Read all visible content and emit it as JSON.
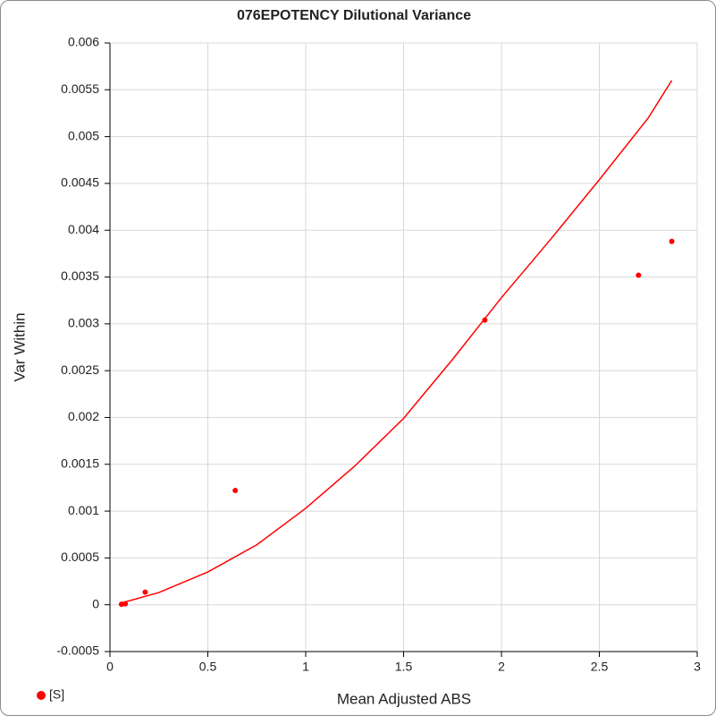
{
  "chart_data": {
    "type": "scatter",
    "title": "076EPOTENCY Dilutional Variance",
    "x_label": "Mean Adjusted ABS",
    "y_label": "Var Within",
    "xlim": [
      0,
      3
    ],
    "xticks": [
      0,
      0.5,
      1,
      1.5,
      2,
      2.5,
      3
    ],
    "ylim": [
      -0.0005,
      0.006
    ],
    "yticks": [
      -0.0005,
      0,
      0.0005,
      0.001,
      0.0015,
      0.002,
      0.0025,
      0.003,
      0.0035,
      0.004,
      0.0045,
      0.005,
      0.0055,
      0.006
    ],
    "grid": true,
    "legend": "bottom-left",
    "series": [
      {
        "name": "[S]",
        "color": "#ff0000",
        "mode": "markers",
        "x": [
          0.059,
          0.078,
          0.18,
          0.64,
          1.915,
          2.7,
          2.87
        ],
        "values": [
          5e-06,
          1e-05,
          0.000134,
          0.00122,
          0.00304,
          0.00352,
          0.00388
        ]
      },
      {
        "color": "#ff0000",
        "mode": "line",
        "x": [
          0.06,
          0.25,
          0.5,
          0.75,
          1,
          1.25,
          1.5,
          1.75,
          2,
          2.25,
          2.5,
          2.75,
          2.87
        ],
        "values": [
          2e-05,
          0.00013,
          0.00035,
          0.00064,
          0.00103,
          0.00148,
          0.00199,
          0.00262,
          0.00328,
          0.0039,
          0.00454,
          0.0052,
          0.0056
        ]
      }
    ]
  }
}
